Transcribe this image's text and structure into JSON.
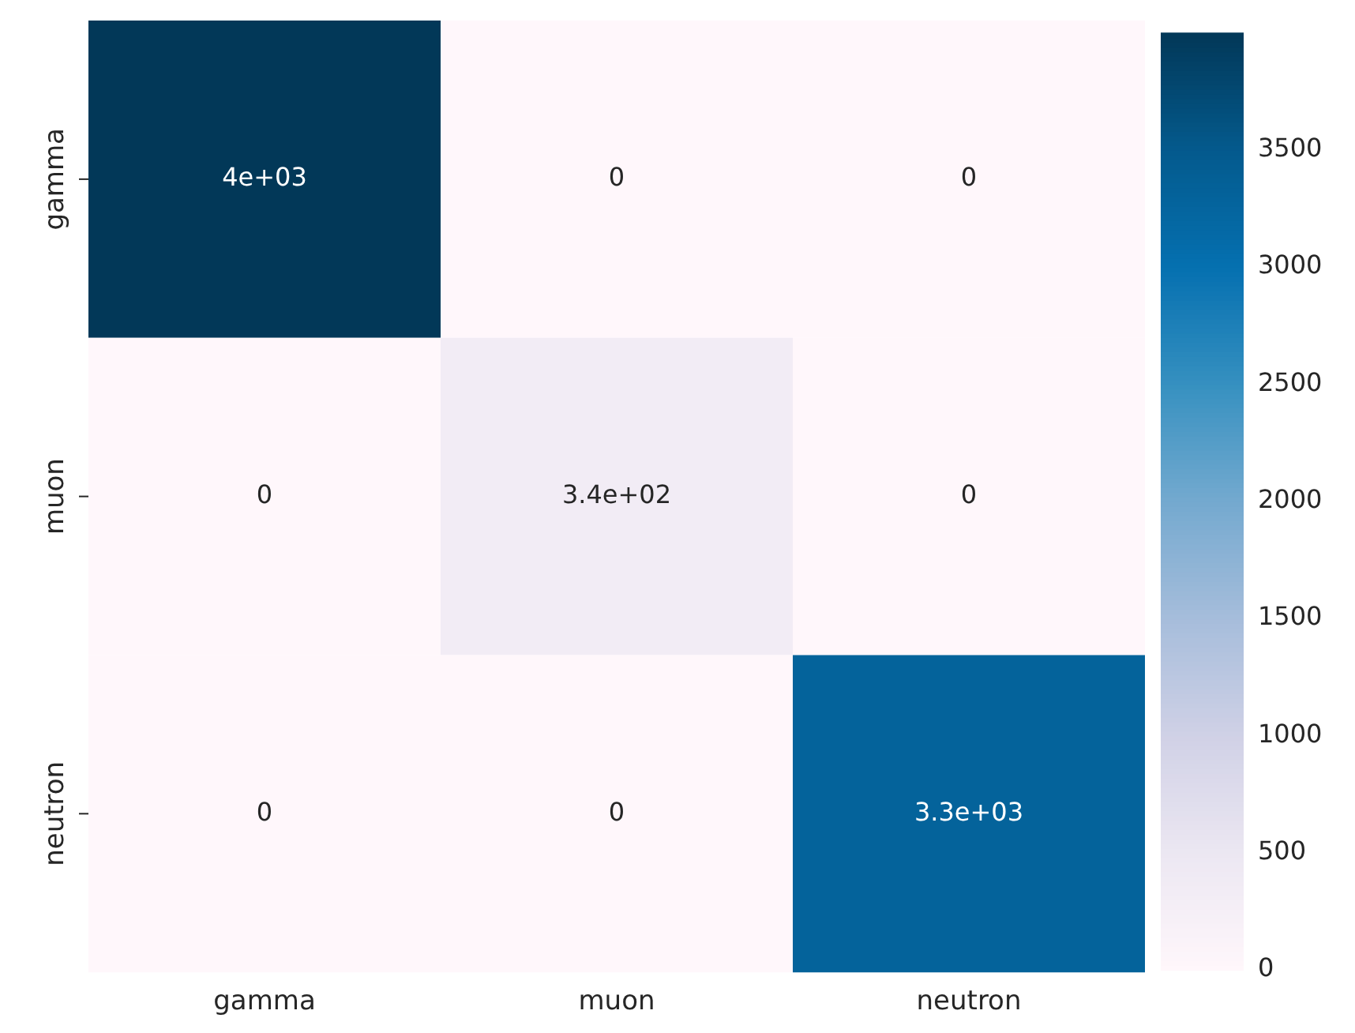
{
  "chart_data": {
    "type": "heatmap",
    "categories": [
      "gamma",
      "muon",
      "neutron"
    ],
    "y_categories": [
      "gamma",
      "muon",
      "neutron"
    ],
    "cells": [
      [
        4000,
        0,
        0
      ],
      [
        0,
        340,
        0
      ],
      [
        0,
        0,
        3300
      ]
    ],
    "cell_labels": [
      [
        "4e+03",
        "0",
        "0"
      ],
      [
        "0",
        "3.4e+02",
        "0"
      ],
      [
        "0",
        "0",
        "3.3e+03"
      ]
    ],
    "clim": [
      0,
      4000
    ],
    "cticks": [
      0,
      500,
      1000,
      1500,
      2000,
      2500,
      3000,
      3500
    ]
  }
}
